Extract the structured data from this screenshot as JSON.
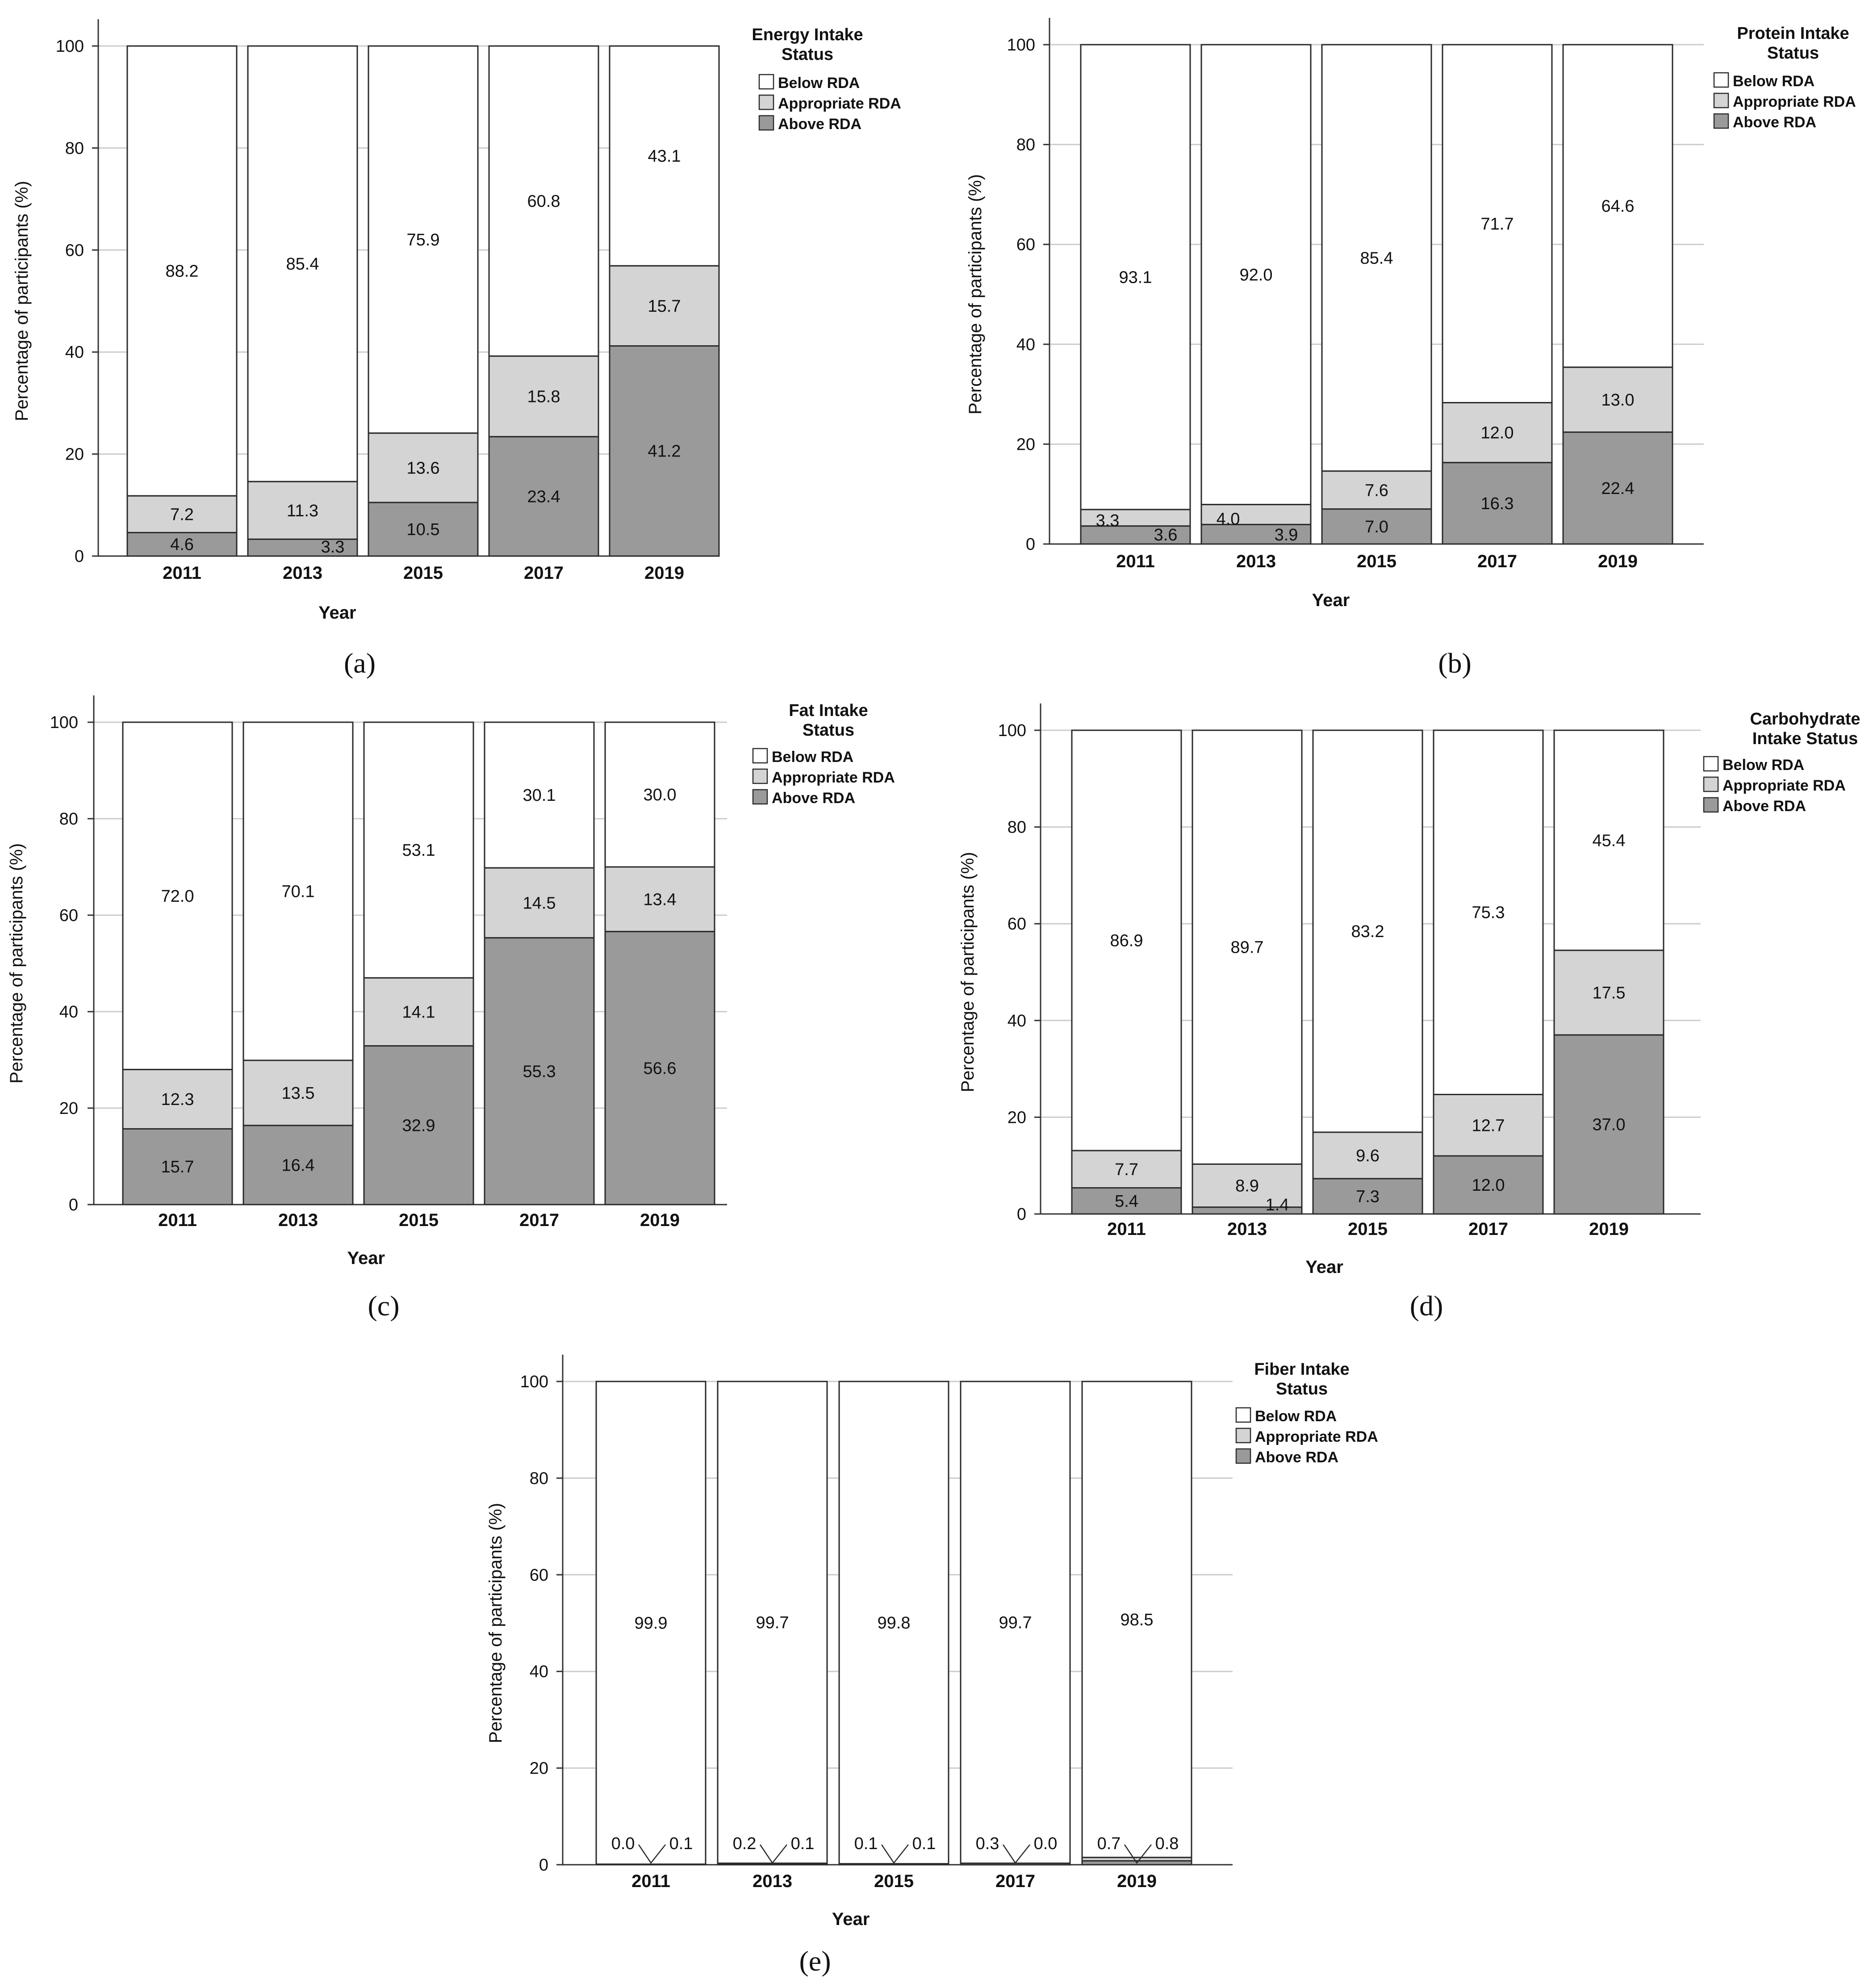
{
  "colors": {
    "below": "#ffffff",
    "appropriate": "#d4d4d4",
    "above": "#9a9a9a",
    "outline": "#2a2a2a",
    "gridline": "#cccccc",
    "axis": "#333333",
    "text": "#111111"
  },
  "chart_data": [
    {
      "type": "bar",
      "stacked": true,
      "panel_label": "(a)",
      "legend_title": "Energy Intake Status",
      "legend_title_lines": [
        "Energy Intake",
        "Status"
      ],
      "legend_items": [
        "Below RDA",
        "Appropriate RDA",
        "Above RDA"
      ],
      "legend_position": "top-right",
      "xlabel": "Year",
      "ylabel": "Percentage of participants  (%)",
      "ylim": [
        0,
        100
      ],
      "yticks": [
        "0",
        "20",
        "40",
        "60",
        "80",
        "100"
      ],
      "categories": [
        "2011",
        "2013",
        "2015",
        "2017",
        "2019"
      ],
      "series": [
        {
          "name": "Above RDA",
          "values": [
            4.6,
            3.3,
            10.5,
            23.4,
            41.2
          ],
          "labels": [
            "4.6",
            "3.3",
            "10.5",
            "23.4",
            "41.2"
          ]
        },
        {
          "name": "Appropriate RDA",
          "values": [
            7.2,
            11.3,
            13.6,
            15.8,
            15.7
          ],
          "labels": [
            "7.2",
            "11.3",
            "13.6",
            "15.8",
            "15.7"
          ]
        },
        {
          "name": "Below RDA",
          "values": [
            88.2,
            85.4,
            75.9,
            60.8,
            43.1
          ],
          "labels": [
            "88.2",
            "85.4",
            "75.9",
            "60.8",
            "43.1"
          ]
        }
      ]
    },
    {
      "type": "bar",
      "stacked": true,
      "panel_label": "(b)",
      "legend_title": "Protein Intake Status",
      "legend_title_lines": [
        "Protein Intake",
        "Status"
      ],
      "legend_items": [
        "Below RDA",
        "Appropriate RDA",
        "Above RDA"
      ],
      "legend_position": "top-right",
      "xlabel": "Year",
      "ylabel": "Percentage of participants  (%)",
      "ylim": [
        0,
        100
      ],
      "yticks": [
        "0",
        "20",
        "40",
        "60",
        "80",
        "100"
      ],
      "categories": [
        "2011",
        "2013",
        "2015",
        "2017",
        "2019"
      ],
      "series": [
        {
          "name": "Above RDA",
          "values": [
            3.6,
            3.9,
            7.0,
            16.3,
            22.4
          ],
          "labels": [
            "3.6",
            "3.9",
            "7.0",
            "16.3",
            "22.4"
          ]
        },
        {
          "name": "Appropriate RDA",
          "values": [
            3.3,
            4.0,
            7.6,
            12.0,
            13.0
          ],
          "labels": [
            "3.3",
            "4.0",
            "7.6",
            "12.0",
            "13.0"
          ]
        },
        {
          "name": "Below RDA",
          "values": [
            93.1,
            92.0,
            85.4,
            71.7,
            64.6
          ],
          "labels": [
            "93.1",
            "92.0",
            "85.4",
            "71.7",
            "64.6"
          ]
        }
      ]
    },
    {
      "type": "bar",
      "stacked": true,
      "panel_label": "(c)",
      "legend_title": "Fat Intake Status",
      "legend_title_lines": [
        "Fat Intake",
        "Status"
      ],
      "legend_items": [
        "Below RDA",
        "Appropriate RDA",
        "Above RDA"
      ],
      "legend_position": "top-right",
      "xlabel": "Year",
      "ylabel": "Percentage of participants  (%)",
      "ylim": [
        0,
        100
      ],
      "yticks": [
        "0",
        "20",
        "40",
        "60",
        "80",
        "100"
      ],
      "categories": [
        "2011",
        "2013",
        "2015",
        "2017",
        "2019"
      ],
      "series": [
        {
          "name": "Above RDA",
          "values": [
            15.7,
            16.4,
            32.9,
            55.3,
            56.6
          ],
          "labels": [
            "15.7",
            "16.4",
            "32.9",
            "55.3",
            "56.6"
          ]
        },
        {
          "name": "Appropriate RDA",
          "values": [
            12.3,
            13.5,
            14.1,
            14.5,
            13.4
          ],
          "labels": [
            "12.3",
            "13.5",
            "14.1",
            "14.5",
            "13.4"
          ]
        },
        {
          "name": "Below RDA",
          "values": [
            72.0,
            70.1,
            53.1,
            30.1,
            30.0
          ],
          "labels": [
            "72.0",
            "70.1",
            "53.1",
            "30.1",
            "30.0"
          ]
        }
      ]
    },
    {
      "type": "bar",
      "stacked": true,
      "panel_label": "(d)",
      "legend_title": "Carbohydrate Intake Status",
      "legend_title_lines": [
        "Carbohydrate",
        "Intake Status"
      ],
      "legend_items": [
        "Below RDA",
        "Appropriate RDA",
        "Above RDA"
      ],
      "legend_position": "top-right",
      "xlabel": "Year",
      "ylabel": "Percentage of participants  (%)",
      "ylim": [
        0,
        100
      ],
      "yticks": [
        "0",
        "20",
        "40",
        "60",
        "80",
        "100"
      ],
      "categories": [
        "2011",
        "2013",
        "2015",
        "2017",
        "2019"
      ],
      "series": [
        {
          "name": "Above RDA",
          "values": [
            5.4,
            1.4,
            7.3,
            12.0,
            37.0
          ],
          "labels": [
            "5.4",
            "1.4",
            "7.3",
            "12.0",
            "37.0"
          ]
        },
        {
          "name": "Appropriate RDA",
          "values": [
            7.7,
            8.9,
            9.6,
            12.7,
            17.5
          ],
          "labels": [
            "7.7",
            "8.9",
            "9.6",
            "12.7",
            "17.5"
          ]
        },
        {
          "name": "Below RDA",
          "values": [
            86.9,
            89.7,
            83.2,
            75.3,
            45.4
          ],
          "labels": [
            "86.9",
            "89.7",
            "83.2",
            "75.3",
            "45.4"
          ]
        }
      ]
    },
    {
      "type": "bar",
      "stacked": true,
      "panel_label": "(e)",
      "legend_title": "Fiber Intake Status",
      "legend_title_lines": [
        "Fiber Intake",
        "Status"
      ],
      "legend_items": [
        "Below RDA",
        "Appropriate RDA",
        "Above RDA"
      ],
      "legend_position": "top-right",
      "xlabel": "Year",
      "ylabel": "Percentage of participants  (%)",
      "ylim": [
        0,
        100
      ],
      "yticks": [
        "0",
        "20",
        "40",
        "60",
        "80",
        "100"
      ],
      "categories": [
        "2011",
        "2013",
        "2015",
        "2017",
        "2019"
      ],
      "series": [
        {
          "name": "Above RDA",
          "values": [
            0.1,
            0.1,
            0.1,
            0.0,
            0.8
          ],
          "labels": [
            "0.1",
            "0.1",
            "0.1",
            "0.0",
            "0.8"
          ]
        },
        {
          "name": "Appropriate RDA",
          "values": [
            0.0,
            0.2,
            0.1,
            0.3,
            0.7
          ],
          "labels": [
            "0.0",
            "0.2",
            "0.1",
            "0.3",
            "0.7"
          ]
        },
        {
          "name": "Below RDA",
          "values": [
            99.9,
            99.7,
            99.8,
            99.7,
            98.5
          ],
          "labels": [
            "99.9",
            "99.7",
            "99.8",
            "99.7",
            "98.5"
          ]
        }
      ]
    }
  ]
}
